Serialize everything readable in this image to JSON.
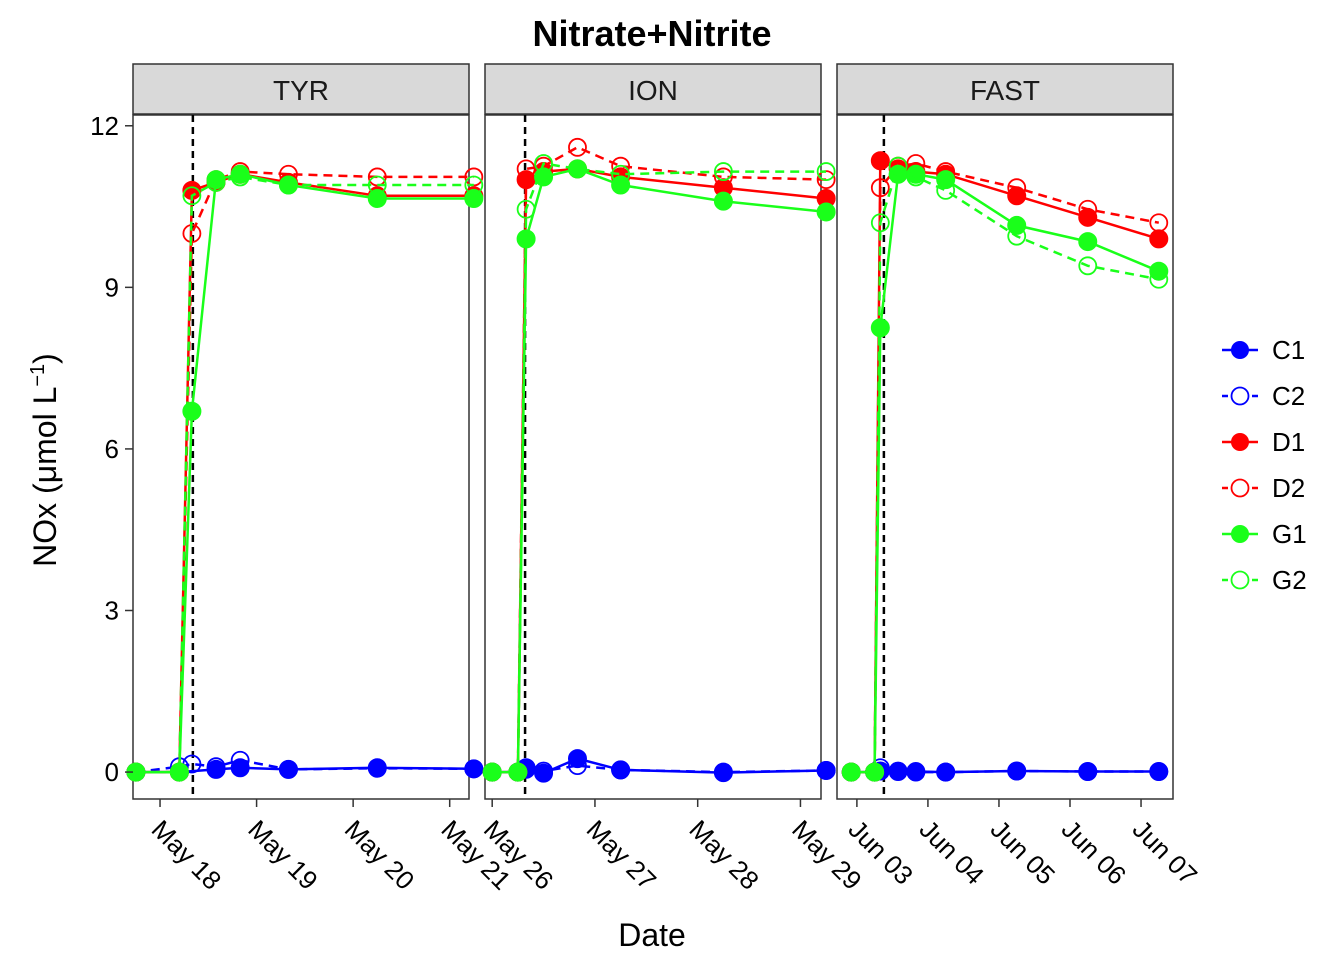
{
  "chart_data": {
    "type": "line",
    "title": "Nitrate+Nitrite",
    "xlabel": "Date",
    "ylabel": "NOx (μmol L",
    "ylabel_unit_sup": "−1",
    "ylabel_close": ")",
    "ylim": [
      -0.5,
      12.2
    ],
    "y_ticks": [
      0,
      3,
      6,
      9,
      12
    ],
    "y_tick_labels": [
      "0",
      "3",
      "6",
      "9",
      "12"
    ],
    "legend_position": "right",
    "series_styles": {
      "C1": {
        "color": "#0000ff",
        "filled": true,
        "dashed": false
      },
      "C2": {
        "color": "#0000ff",
        "filled": false,
        "dashed": true
      },
      "D1": {
        "color": "#ff0000",
        "filled": true,
        "dashed": false
      },
      "D2": {
        "color": "#ff0000",
        "filled": false,
        "dashed": true
      },
      "G1": {
        "color": "#1aff1a",
        "filled": true,
        "dashed": false
      },
      "G2": {
        "color": "#1aff1a",
        "filled": false,
        "dashed": true
      }
    },
    "legend": [
      "C1",
      "C2",
      "D1",
      "D2",
      "G1",
      "G2"
    ],
    "panels": [
      {
        "strip": "TYR",
        "xlim": [
          17.72,
          21.2
        ],
        "x_ticks": [
          18,
          19,
          20,
          21
        ],
        "x_tick_labels": [
          "May 18",
          "May 19",
          "May 20",
          "May 21"
        ],
        "vline": 18.34,
        "series": [
          {
            "name": "C1",
            "x": [
              17.75,
              18.2,
              18.58,
              18.83,
              19.33,
              20.25,
              21.25
            ],
            "values": [
              0.0,
              0.0,
              0.05,
              0.08,
              0.05,
              0.08,
              0.06
            ]
          },
          {
            "name": "C2",
            "x": [
              17.75,
              18.2,
              18.33,
              18.58,
              18.83,
              19.33,
              20.25,
              21.25
            ],
            "values": [
              0.0,
              0.1,
              0.15,
              0.1,
              0.22,
              0.05,
              0.07,
              0.06
            ]
          },
          {
            "name": "D1",
            "x": [
              17.75,
              18.2,
              18.33,
              18.58,
              18.83,
              19.33,
              20.25,
              21.25
            ],
            "values": [
              0.0,
              0.0,
              10.8,
              10.95,
              11.1,
              10.95,
              10.7,
              10.7
            ]
          },
          {
            "name": "D2",
            "x": [
              17.75,
              18.2,
              18.33,
              18.58,
              18.83,
              19.33,
              20.25,
              21.25
            ],
            "values": [
              0.0,
              0.0,
              10.0,
              11.0,
              11.15,
              11.1,
              11.05,
              11.05
            ]
          },
          {
            "name": "G1",
            "x": [
              17.75,
              18.2,
              18.33,
              18.58,
              18.83,
              19.33,
              20.25,
              21.25
            ],
            "values": [
              0.0,
              0.0,
              6.7,
              11.0,
              11.1,
              10.9,
              10.65,
              10.65
            ]
          },
          {
            "name": "G2",
            "x": [
              17.75,
              18.2,
              18.33,
              18.58,
              18.83,
              19.33,
              20.25,
              21.25
            ],
            "values": [
              0.0,
              0.0,
              10.7,
              10.95,
              11.05,
              10.9,
              10.9,
              10.9
            ]
          }
        ]
      },
      {
        "strip": "ION",
        "xlim": [
          25.93,
          29.2
        ],
        "x_ticks": [
          26,
          27,
          28,
          29
        ],
        "x_tick_labels": [
          "May 26",
          "May 27",
          "May 28",
          "May 29"
        ],
        "vline": 26.32,
        "series": [
          {
            "name": "C1",
            "x": [
              26.0,
              26.25,
              26.33,
              26.5,
              26.83,
              27.25,
              28.25,
              29.25
            ],
            "values": [
              0.0,
              0.0,
              0.08,
              -0.02,
              0.25,
              0.04,
              -0.01,
              0.03
            ]
          },
          {
            "name": "C2",
            "x": [
              26.0,
              26.25,
              26.33,
              26.5,
              26.83,
              27.25,
              28.25,
              29.25
            ],
            "values": [
              0.0,
              0.0,
              0.05,
              0.02,
              0.12,
              0.04,
              0.0,
              0.03
            ]
          },
          {
            "name": "D1",
            "x": [
              26.0,
              26.25,
              26.33,
              26.5,
              26.83,
              27.25,
              28.25,
              29.25
            ],
            "values": [
              0.0,
              0.0,
              11.0,
              11.15,
              11.2,
              11.05,
              10.85,
              10.65
            ]
          },
          {
            "name": "D2",
            "x": [
              26.0,
              26.25,
              26.33,
              26.5,
              26.83,
              27.25,
              28.25,
              29.25
            ],
            "values": [
              0.0,
              0.0,
              11.2,
              11.25,
              11.6,
              11.25,
              11.05,
              11.0
            ]
          },
          {
            "name": "G1",
            "x": [
              26.0,
              26.25,
              26.33,
              26.5,
              26.83,
              27.25,
              28.25,
              29.25
            ],
            "values": [
              0.0,
              0.0,
              9.9,
              11.05,
              11.2,
              10.9,
              10.6,
              10.4
            ]
          },
          {
            "name": "G2",
            "x": [
              26.0,
              26.25,
              26.33,
              26.5,
              26.83,
              27.25,
              28.25,
              29.25
            ],
            "values": [
              0.0,
              0.0,
              10.45,
              11.3,
              11.2,
              11.1,
              11.15,
              11.15
            ]
          }
        ]
      },
      {
        "strip": "FAST",
        "xlim": [
          2.72,
          7.45
        ],
        "x_ticks": [
          3,
          4,
          5,
          6,
          7
        ],
        "x_tick_labels": [
          "Jun 03",
          "Jun 04",
          "Jun 05",
          "Jun 06",
          "Jun 07"
        ],
        "vline": 3.38,
        "series": [
          {
            "name": "C1",
            "x": [
              2.92,
              3.25,
              3.33,
              3.58,
              3.83,
              4.25,
              5.25,
              6.25,
              7.25
            ],
            "values": [
              0.0,
              0.0,
              0.02,
              0.01,
              0.01,
              0.0,
              0.02,
              0.01,
              0.01
            ]
          },
          {
            "name": "C2",
            "x": [
              2.92,
              3.25,
              3.33,
              3.58,
              3.83,
              4.25,
              5.25,
              6.25,
              7.25
            ],
            "values": [
              0.0,
              0.0,
              0.08,
              0.02,
              0.0,
              0.0,
              0.02,
              0.01,
              0.01
            ]
          },
          {
            "name": "D1",
            "x": [
              2.92,
              3.25,
              3.33,
              3.58,
              3.83,
              4.25,
              5.25,
              6.25,
              7.25
            ],
            "values": [
              0.0,
              0.0,
              11.35,
              11.2,
              11.15,
              11.1,
              10.7,
              10.3,
              9.9
            ]
          },
          {
            "name": "D2",
            "x": [
              2.92,
              3.25,
              3.33,
              3.58,
              3.83,
              4.25,
              5.25,
              6.25,
              7.25
            ],
            "values": [
              0.0,
              0.0,
              10.85,
              11.25,
              11.3,
              11.15,
              10.85,
              10.45,
              10.2
            ]
          },
          {
            "name": "G1",
            "x": [
              2.92,
              3.25,
              3.33,
              3.58,
              3.83,
              4.25,
              5.25,
              6.25,
              7.25
            ],
            "values": [
              0.0,
              0.0,
              8.25,
              11.1,
              11.1,
              11.0,
              10.15,
              9.85,
              9.3
            ]
          },
          {
            "name": "G2",
            "x": [
              2.92,
              3.25,
              3.33,
              3.58,
              3.83,
              4.25,
              5.25,
              6.25,
              7.25
            ],
            "values": [
              0.0,
              0.0,
              10.2,
              11.25,
              11.05,
              10.8,
              9.95,
              9.4,
              9.15
            ]
          }
        ]
      }
    ]
  }
}
